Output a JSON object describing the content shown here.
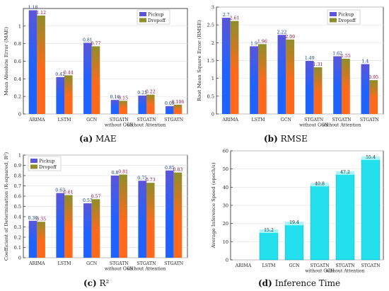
{
  "colors": {
    "pickup_top": "#5b55d8",
    "pickup_bottom": "#1e63ff",
    "dropoff_top": "#8e8e2c",
    "dropoff_bottom": "#ff6a1a",
    "inference_fill": "#22e0ee",
    "inference_cap": "#a9f4f8"
  },
  "captions": [
    {
      "tag": "(a)",
      "text": "MAE"
    },
    {
      "tag": "(b)",
      "text": "RMSE"
    },
    {
      "tag": "(c)",
      "text": "R²"
    },
    {
      "tag": "(d)",
      "text": "Inference Time"
    }
  ],
  "chart_data": [
    {
      "type": "bar",
      "categories": [
        [
          "ARIMA"
        ],
        [
          "LSTM"
        ],
        [
          "GCN"
        ],
        [
          "STGATN",
          "without GCN"
        ],
        [
          "STGATN",
          "without Attention"
        ],
        [
          "STGATN"
        ]
      ],
      "ylabel": "Mean Absolute Error (MAE)",
      "ylim": [
        0,
        1.2
      ],
      "yticks": [
        0,
        0.2,
        0.4,
        0.6,
        0.8,
        1
      ],
      "grid": true,
      "legend": "top-right",
      "series": [
        {
          "name": "Pickup",
          "values": [
            1.18,
            0.42,
            0.81,
            0.16,
            0.21,
            0.09
          ],
          "labels": [
            "1.18",
            "0.42",
            "0.81",
            "0.16",
            "0.21",
            "0.09"
          ]
        },
        {
          "name": "Dropoff",
          "values": [
            1.12,
            0.44,
            0.77,
            0.15,
            0.22,
            0.106
          ],
          "labels": [
            "1.12",
            "0.44",
            "0.77",
            "0.15",
            "0.22",
            "0.106"
          ]
        }
      ]
    },
    {
      "type": "bar",
      "categories": [
        [
          "ARIMA"
        ],
        [
          "LSTM"
        ],
        [
          "GCN"
        ],
        [
          "STGATN",
          "without GCN"
        ],
        [
          "STGATN",
          "without Attention"
        ],
        [
          "STGATN"
        ]
      ],
      "ylabel": "Root Mean Square Error (RMSE)",
      "ylim": [
        0,
        3
      ],
      "yticks": [
        0,
        0.5,
        1,
        1.5,
        2,
        2.5,
        3
      ],
      "grid": true,
      "legend": "top-right",
      "series": [
        {
          "name": "Pickup",
          "values": [
            2.7,
            1.9,
            2.22,
            1.49,
            1.62,
            1.4
          ],
          "labels": [
            "2.7",
            "1.9",
            "2.22",
            "1.49",
            "1.62",
            "1.4"
          ]
        },
        {
          "name": "Dropoff",
          "values": [
            2.61,
            1.96,
            2.09,
            1.31,
            1.55,
            0.95
          ],
          "labels": [
            "2.61",
            "1.96",
            "2.09",
            "1.31",
            "1.55",
            "0.95"
          ]
        }
      ]
    },
    {
      "type": "bar",
      "categories": [
        [
          "ARIMA"
        ],
        [
          "LSTM"
        ],
        [
          "GCN"
        ],
        [
          "STGATN",
          "without GCN"
        ],
        [
          "STGATN",
          "without Attention"
        ],
        [
          "STGATN"
        ]
      ],
      "ylabel": "Coefficient of Determination (R-squared, R²)",
      "ylim": [
        0,
        1
      ],
      "yticks": [
        0,
        0.1,
        0.2,
        0.3,
        0.4,
        0.5,
        0.6,
        0.7,
        0.8,
        0.9,
        1
      ],
      "grid": true,
      "legend": "top-left",
      "series": [
        {
          "name": "Pickup",
          "values": [
            0.36,
            0.63,
            0.53,
            0.8,
            0.75,
            0.85
          ],
          "labels": [
            "0.36",
            "0.63",
            "0.53",
            "0.8",
            "0.75",
            "0.85"
          ]
        },
        {
          "name": "Dropoff",
          "values": [
            0.35,
            0.61,
            0.57,
            0.81,
            0.73,
            0.83
          ],
          "labels": [
            "0.35",
            "0.61",
            "0.57",
            "0.81",
            "0.73",
            "0.83"
          ]
        }
      ]
    },
    {
      "type": "bar",
      "categories": [
        [
          "ARIMA"
        ],
        [
          "LSTM"
        ],
        [
          "GCN"
        ],
        [
          "STGATN",
          "without GCN"
        ],
        [
          "STGATN",
          "without Attention"
        ],
        [
          "STGATN"
        ]
      ],
      "ylabel": "Average Inference Speed (epoch/s)",
      "ylim": [
        0,
        60
      ],
      "yticks": [
        0,
        10,
        20,
        30,
        40,
        50,
        60
      ],
      "grid": true,
      "series": [
        {
          "values": [
            0,
            15.2,
            19.4,
            40.8,
            47.2,
            55.4
          ],
          "labels": [
            "",
            "15.2",
            "19.4",
            "40.8",
            "47.2",
            "55.4"
          ]
        }
      ]
    }
  ]
}
